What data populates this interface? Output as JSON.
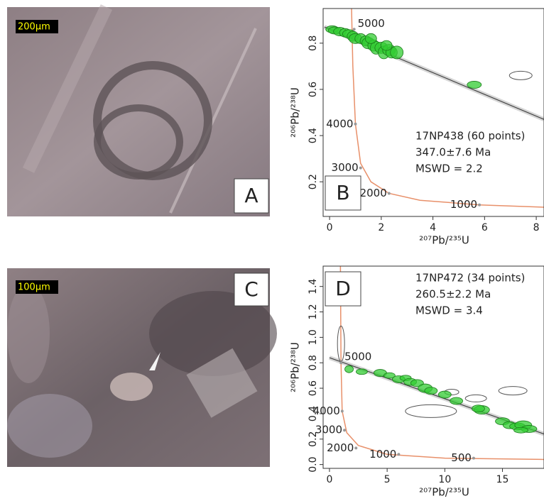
{
  "photos": [
    {
      "letter": "A",
      "scale": "200μm"
    },
    {
      "letter": "C",
      "scale": "100μm"
    }
  ],
  "chart_data": [
    {
      "type": "scatter",
      "panel": "B",
      "x_label": "²⁰⁷Pb/²³⁵U",
      "y_label": "²⁰⁶Pb/²³⁸U",
      "annotation": [
        "17NP438 (60 points)",
        "347.0±7.6 Ma",
        "MSWD = 2.2"
      ],
      "xlim": [
        -0.25,
        8.3
      ],
      "ylim": [
        0.05,
        0.95
      ],
      "xticks": [
        0,
        2,
        4,
        6,
        8
      ],
      "yticks": [
        0.2,
        0.4,
        0.6,
        0.8
      ],
      "points": {
        "color": "#33cc33",
        "x": [
          0.1,
          0.2,
          0.4,
          0.6,
          0.75,
          0.9,
          1.0,
          1.2,
          1.4,
          1.5,
          1.7,
          1.8,
          2.0,
          2.1,
          2.3,
          2.4,
          2.6,
          2.2,
          1.6,
          5.6
        ],
        "y": [
          0.86,
          0.855,
          0.85,
          0.845,
          0.84,
          0.83,
          0.82,
          0.82,
          0.81,
          0.8,
          0.79,
          0.78,
          0.78,
          0.76,
          0.77,
          0.76,
          0.76,
          0.79,
          0.82,
          0.62
        ]
      },
      "rejected": {
        "color": "#555555",
        "x": [
          7.4
        ],
        "y": [
          0.66
        ]
      },
      "fit": {
        "color": "#444444",
        "x": [
          -0.2,
          8.3
        ],
        "y": [
          0.87,
          0.47
        ]
      },
      "curve": {
        "color": "#e8906a",
        "x": [
          0.85,
          0.9,
          1.0,
          1.2,
          1.6,
          2.3,
          3.5,
          5.8,
          8.3
        ],
        "y": [
          0.95,
          0.7,
          0.45,
          0.28,
          0.2,
          0.15,
          0.12,
          0.1,
          0.09
        ]
      },
      "ages": [
        {
          "text": "5000",
          "x": 0.95,
          "y": 0.86
        },
        {
          "text": "4000",
          "x": 1.0,
          "y": 0.45
        },
        {
          "text": "3000",
          "x": 1.2,
          "y": 0.26
        },
        {
          "text": "2000",
          "x": 2.3,
          "y": 0.15
        },
        {
          "text": "1000",
          "x": 5.8,
          "y": 0.1
        }
      ]
    },
    {
      "type": "scatter",
      "panel": "D",
      "x_label": "²⁰⁷Pb/²³⁵U",
      "y_label": "²⁰⁶Pb/²³⁸U",
      "annotation": [
        "17NP472 (34 points)",
        "260.5±2.2 Ma",
        "MSWD = 3.4"
      ],
      "xlim": [
        -0.55,
        18.6
      ],
      "ylim": [
        -0.03,
        1.56
      ],
      "xticks": [
        0,
        5,
        10,
        15
      ],
      "yticks": [
        {
          "value": 0,
          "label": "0.0"
        },
        0.2,
        0.4,
        0.6,
        0.8,
        {
          "value": 1,
          "label": "1.0"
        },
        1.2,
        1.4
      ],
      "points": {
        "color": "#33cc33",
        "x": [
          1.7,
          2.8,
          4.4,
          5.2,
          6.0,
          6.6,
          7.0,
          7.6,
          8.3,
          8.8,
          10,
          11,
          13.2,
          15,
          15.6,
          16.3,
          16.8,
          17.3,
          16.6,
          12.9
        ],
        "y": [
          0.75,
          0.73,
          0.72,
          0.7,
          0.67,
          0.68,
          0.65,
          0.64,
          0.6,
          0.58,
          0.55,
          0.5,
          0.43,
          0.34,
          0.31,
          0.3,
          0.31,
          0.28,
          0.27,
          0.44
        ]
      },
      "rejected": {
        "color": "#555555",
        "x": [
          8.8,
          10.6,
          12.7,
          15.9,
          1.0
        ],
        "y": [
          0.42,
          0.57,
          0.52,
          0.58,
          0.95
        ]
      },
      "fit": {
        "color": "#444444",
        "x": [
          0,
          18.6
        ],
        "y": [
          0.84,
          0.24
        ]
      },
      "curve": {
        "color": "#e8906a",
        "x": [
          0.95,
          1.0,
          1.1,
          1.5,
          2.5,
          5,
          10,
          18.6
        ],
        "y": [
          1.56,
          0.8,
          0.42,
          0.25,
          0.15,
          0.08,
          0.05,
          0.04
        ]
      },
      "ages": [
        {
          "text": "5000",
          "x": 1.0,
          "y": 0.8
        },
        {
          "text": "4000",
          "x": 1.1,
          "y": 0.42
        },
        {
          "text": "3000",
          "x": 1.3,
          "y": 0.27
        },
        {
          "text": "2000",
          "x": 2.3,
          "y": 0.13
        },
        {
          "text": "1000",
          "x": 6.0,
          "y": 0.08
        },
        {
          "text": "500",
          "x": 12.5,
          "y": 0.05
        }
      ]
    }
  ]
}
